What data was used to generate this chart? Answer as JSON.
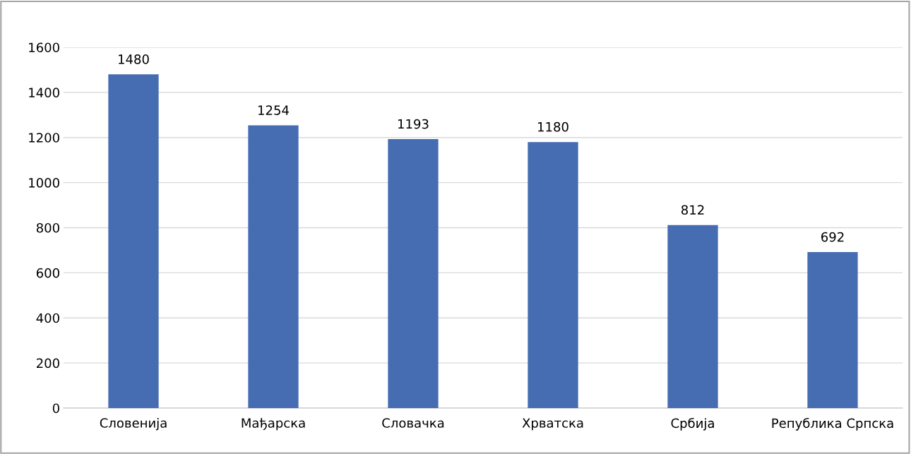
{
  "chart_data": {
    "type": "bar",
    "categories": [
      "Словенија",
      "Мађарска",
      "Словачка",
      "Хрватска",
      "Србија",
      "Република Српска"
    ],
    "values": [
      1480,
      1254,
      1193,
      1180,
      812,
      692
    ],
    "color": "#466cb2",
    "ylim": [
      0,
      1600
    ],
    "yticks": [
      0,
      200,
      400,
      600,
      800,
      1000,
      1200,
      1400,
      1600
    ],
    "grid": "y",
    "data_labels": true,
    "legend": false
  }
}
